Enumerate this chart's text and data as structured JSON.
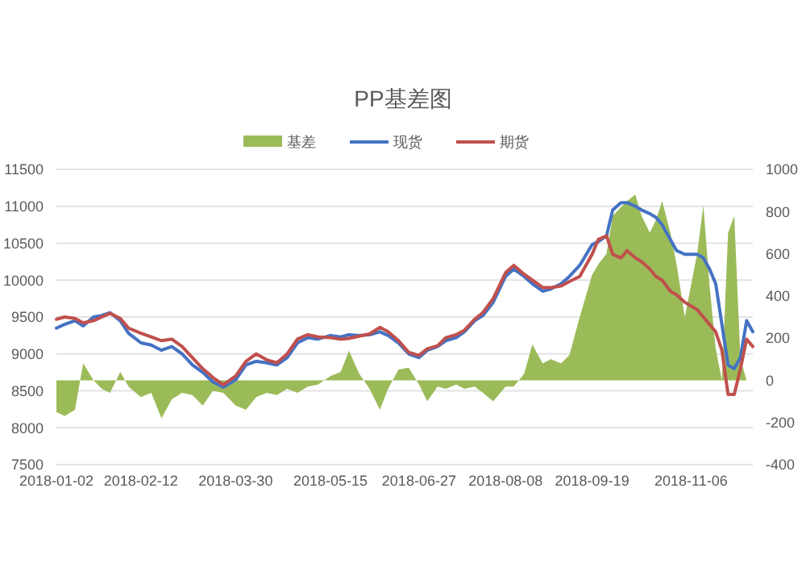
{
  "chart_data": {
    "type": "line",
    "title": "PP基差图",
    "legend": "top",
    "grid": "y",
    "x": [
      "2018-01-02",
      "2018-01-06",
      "2018-01-11",
      "2018-01-15",
      "2018-01-20",
      "2018-01-24",
      "2018-01-28",
      "2018-02-02",
      "2018-02-06",
      "2018-02-12",
      "2018-02-17",
      "2018-02-22",
      "2018-02-27",
      "2018-03-04",
      "2018-03-09",
      "2018-03-14",
      "2018-03-19",
      "2018-03-24",
      "2018-03-30",
      "2018-04-04",
      "2018-04-09",
      "2018-04-14",
      "2018-04-19",
      "2018-04-24",
      "2018-04-29",
      "2018-05-04",
      "2018-05-09",
      "2018-05-15",
      "2018-05-20",
      "2018-05-24",
      "2018-05-29",
      "2018-06-03",
      "2018-06-08",
      "2018-06-12",
      "2018-06-17",
      "2018-06-22",
      "2018-06-27",
      "2018-07-01",
      "2018-07-06",
      "2018-07-10",
      "2018-07-15",
      "2018-07-19",
      "2018-07-24",
      "2018-07-28",
      "2018-08-02",
      "2018-08-08",
      "2018-08-12",
      "2018-08-17",
      "2018-08-21",
      "2018-08-26",
      "2018-08-30",
      "2018-09-04",
      "2018-09-08",
      "2018-09-13",
      "2018-09-19",
      "2018-09-22",
      "2018-09-26",
      "2018-09-29",
      "2018-10-03",
      "2018-10-06",
      "2018-10-10",
      "2018-10-13",
      "2018-10-17",
      "2018-10-20",
      "2018-10-23",
      "2018-10-27",
      "2018-10-30",
      "2018-11-03",
      "2018-11-06",
      "2018-11-09",
      "2018-11-12",
      "2018-11-15",
      "2018-11-18",
      "2018-11-21",
      "2018-11-24",
      "2018-11-27",
      "2018-11-30",
      "2018-12-03",
      "2018-12-06"
    ],
    "series": [
      {
        "name": "基差",
        "type": "area",
        "axis": "y2",
        "color": "#9bbb59",
        "values": [
          -150,
          -170,
          -140,
          80,
          0,
          -40,
          -60,
          40,
          -30,
          -80,
          -60,
          -180,
          -90,
          -60,
          -70,
          -120,
          -50,
          -60,
          -120,
          -140,
          -80,
          -60,
          -70,
          -40,
          -60,
          -30,
          -20,
          20,
          40,
          140,
          30,
          -40,
          -140,
          -40,
          50,
          60,
          -20,
          -100,
          -30,
          -40,
          -20,
          -40,
          -30,
          -60,
          -100,
          -30,
          -30,
          30,
          170,
          80,
          100,
          80,
          120,
          300,
          500,
          550,
          600,
          780,
          820,
          850,
          880,
          780,
          700,
          760,
          850,
          700,
          550,
          300,
          450,
          600,
          830,
          450,
          150,
          0,
          700,
          780,
          100,
          0,
          0
        ]
      },
      {
        "name": "现货",
        "axis": "y",
        "color": "#4472c4",
        "values": [
          9350,
          9400,
          9450,
          9380,
          9500,
          9520,
          9560,
          9450,
          9280,
          9150,
          9120,
          9050,
          9100,
          9000,
          8850,
          8750,
          8620,
          8550,
          8650,
          8850,
          8900,
          8880,
          8850,
          8950,
          9150,
          9220,
          9200,
          9250,
          9230,
          9260,
          9250,
          9260,
          9300,
          9250,
          9150,
          9000,
          8950,
          9050,
          9100,
          9180,
          9220,
          9300,
          9450,
          9520,
          9700,
          10050,
          10150,
          10050,
          9950,
          9850,
          9880,
          9950,
          10050,
          10200,
          10480,
          10520,
          10600,
          10950,
          11050,
          11050,
          11000,
          10950,
          10900,
          10850,
          10750,
          10550,
          10400,
          10350,
          10350,
          10350,
          10300,
          10150,
          9950,
          9400,
          8850,
          8800,
          8950,
          9450,
          9300
        ]
      },
      {
        "name": "期货",
        "axis": "y",
        "color": "#c0504d",
        "values": [
          9470,
          9500,
          9480,
          9420,
          9450,
          9500,
          9550,
          9480,
          9350,
          9280,
          9230,
          9180,
          9200,
          9100,
          8950,
          8800,
          8680,
          8580,
          8700,
          8900,
          9000,
          8920,
          8880,
          9000,
          9200,
          9260,
          9230,
          9220,
          9200,
          9210,
          9240,
          9270,
          9360,
          9300,
          9180,
          9020,
          8980,
          9070,
          9110,
          9220,
          9260,
          9320,
          9470,
          9560,
          9750,
          10100,
          10200,
          10080,
          10000,
          9900,
          9900,
          9920,
          9980,
          10050,
          10350,
          10550,
          10600,
          10350,
          10300,
          10400,
          10300,
          10250,
          10150,
          10050,
          10000,
          9850,
          9800,
          9700,
          9650,
          9600,
          9500,
          9400,
          9300,
          9050,
          8450,
          8450,
          8800,
          9200,
          9100
        ]
      }
    ],
    "xlim": [
      "2018-01-02",
      "2018-12-06"
    ],
    "xticks": [
      {
        "value": "2018-01-02",
        "label": "2018-01-02"
      },
      {
        "value": "2018-02-12",
        "label": "2018-02-12"
      },
      {
        "value": "2018-03-30",
        "label": "2018-03-30"
      },
      {
        "value": "2018-05-15",
        "label": "2018-05-15"
      },
      {
        "value": "2018-06-27",
        "label": "2018-06-27"
      },
      {
        "value": "2018-08-08",
        "label": "2018-08-08"
      },
      {
        "value": "2018-09-19",
        "label": "2018-09-19"
      },
      {
        "value": "2018-11-06",
        "label": "2018-11-06"
      }
    ],
    "ylim": [
      7500,
      11500
    ],
    "yticks": [
      7500,
      8000,
      8500,
      9000,
      9500,
      10000,
      10500,
      11000,
      11500
    ],
    "y2lim": [
      -400,
      1000
    ],
    "y2ticks": [
      -400,
      -200,
      0,
      200,
      400,
      600,
      800,
      1000
    ]
  }
}
